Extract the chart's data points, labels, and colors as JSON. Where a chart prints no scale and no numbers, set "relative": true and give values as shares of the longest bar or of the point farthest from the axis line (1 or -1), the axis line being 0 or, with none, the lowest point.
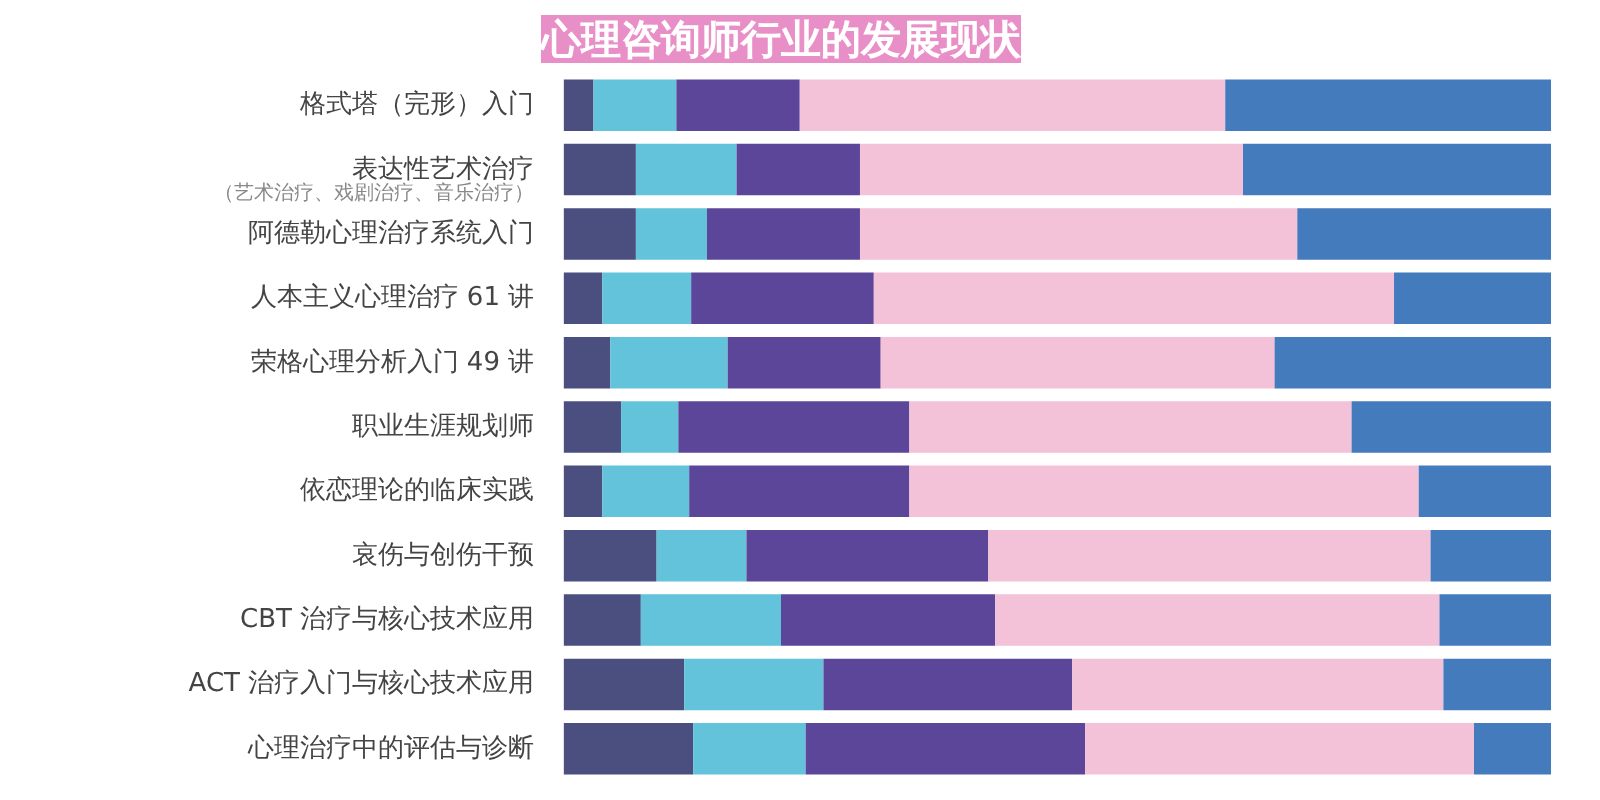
{
  "chart_data": {
    "type": "bar",
    "orientation": "horizontal",
    "stacked": true,
    "relative": true,
    "title": "心理咨询师行业的发展现状",
    "categories": [
      "格式塔（完形）入门",
      "表达性艺术治疗",
      "阿德勒心理治疗系统入门",
      "人本主义心理治疗 61 讲",
      "荣格心理分析入门 49 讲",
      "职业生涯规划师",
      "依恋理论的临床实践",
      "哀伤与创伤干预",
      "CBT 治疗与核心技术应用",
      "ACT 治疗入门与核心技术应用",
      "心理治疗中的评估与诊断"
    ],
    "annotations": [
      "（艺术治疗、戏剧治疗、音乐治疗）"
    ],
    "series": [
      {
        "color": "#4a4f80",
        "values": [
          0.03,
          0.073,
          0.073,
          0.039,
          0.047,
          0.058,
          0.039,
          0.094,
          0.078,
          0.122,
          0.131
        ]
      },
      {
        "color": "#62c3da",
        "values": [
          0.084,
          0.102,
          0.072,
          0.09,
          0.119,
          0.058,
          0.088,
          0.091,
          0.142,
          0.141,
          0.114
        ]
      },
      {
        "color": "#5c4699",
        "values": [
          0.125,
          0.125,
          0.155,
          0.185,
          0.155,
          0.234,
          0.223,
          0.245,
          0.217,
          0.252,
          0.283
        ]
      },
      {
        "color": "#f3c1d8",
        "values": [
          0.431,
          0.388,
          0.443,
          0.527,
          0.399,
          0.448,
          0.516,
          0.448,
          0.45,
          0.376,
          0.394
        ]
      },
      {
        "color": "#437bbd",
        "values": [
          0.33,
          0.312,
          0.257,
          0.159,
          0.28,
          0.202,
          0.134,
          0.122,
          0.113,
          0.109,
          0.078
        ]
      }
    ]
  }
}
